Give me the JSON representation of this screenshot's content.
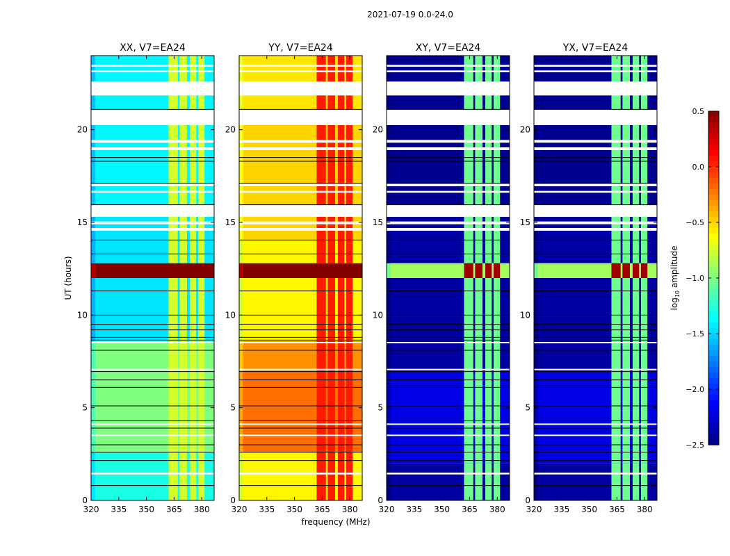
{
  "chart_data": {
    "type": "heatmap",
    "suptitle": "2021-07-19 0.0-24.0",
    "xlabel": "frequency (MHz)",
    "ylabel": "UT (hours)",
    "xlim": [
      320,
      386.7
    ],
    "ylim": [
      0,
      24
    ],
    "xticks": [
      320,
      335,
      350,
      365,
      380
    ],
    "yticks": [
      0,
      5,
      10,
      15,
      20
    ],
    "colorbar": {
      "label": "log10 amplitude",
      "label_main": "log",
      "label_sub": "10",
      "label_rest": " amplitude",
      "cmap": "jet",
      "vmin": -2.5,
      "vmax": 0.5,
      "ticks": [
        0.5,
        0.0,
        -0.5,
        -1.0,
        -1.5,
        -2.0,
        -2.5
      ],
      "tick_labels": [
        "0.5",
        "0.0",
        "−0.5",
        "−1.0",
        "−1.5",
        "−2.0",
        "−2.5"
      ]
    },
    "rfi_channels_mhz": [
      [
        362,
        367
      ],
      [
        368,
        372
      ],
      [
        373.5,
        377
      ],
      [
        378,
        381.5
      ]
    ],
    "flagged_hours": [
      [
        1.4,
        1.5
      ],
      [
        3.5,
        3.55
      ],
      [
        4.1,
        4.15
      ],
      [
        7.05,
        7.1
      ],
      [
        8.5,
        8.55
      ],
      [
        14.55,
        14.7
      ],
      [
        14.9,
        15.05
      ],
      [
        15.3,
        15.95
      ],
      [
        16.6,
        16.7
      ],
      [
        16.95,
        17.1
      ],
      [
        18.9,
        19.05
      ],
      [
        19.3,
        19.45
      ],
      [
        20.25,
        21.1
      ],
      [
        21.85,
        22.6
      ],
      [
        23.1,
        23.2
      ],
      [
        23.4,
        23.5
      ]
    ],
    "grid_lines_hours": [
      0.8,
      2.15,
      2.6,
      3.0,
      3.9,
      4.3,
      5.1,
      6.1,
      6.5,
      6.95,
      8.1,
      8.65,
      8.8,
      9.2,
      9.5,
      10.0,
      11.3,
      13.3,
      14.05,
      15.95,
      17.1,
      18.3,
      18.5,
      21.1
    ],
    "panels": [
      {
        "title": "XX, V7=EA24",
        "bands": [
          [
            0,
            2.6,
            -1.3
          ],
          [
            2.6,
            8.6,
            -1.0
          ],
          [
            8.6,
            12.0,
            -1.45
          ],
          [
            12.0,
            12.8,
            0.5
          ],
          [
            12.8,
            14.05,
            -1.45
          ],
          [
            14.05,
            15.3,
            -1.45
          ],
          [
            15.95,
            21.0,
            -1.4
          ],
          [
            21.0,
            24,
            -1.4
          ]
        ],
        "rfi_level": -0.75,
        "rfi_strip_level": 0.5
      },
      {
        "title": "YY, V7=EA24",
        "bands": [
          [
            0,
            2.6,
            -0.6
          ],
          [
            2.6,
            7.0,
            -0.2
          ],
          [
            7.0,
            8.6,
            -0.3
          ],
          [
            8.6,
            12.0,
            -0.6
          ],
          [
            12.0,
            12.8,
            0.5
          ],
          [
            12.8,
            14.05,
            -0.6
          ],
          [
            14.05,
            15.3,
            -0.5
          ],
          [
            15.95,
            21.0,
            -0.5
          ],
          [
            21.0,
            24,
            -0.55
          ]
        ],
        "rfi_level": 0.05,
        "rfi_strip_level": 0.5
      },
      {
        "title": "XY, V7=EA24",
        "bands": [
          [
            0,
            2.0,
            -2.4
          ],
          [
            2.0,
            7.0,
            -2.2
          ],
          [
            7.0,
            12.0,
            -2.4
          ],
          [
            12.0,
            12.8,
            -0.9
          ],
          [
            12.8,
            15.3,
            -2.4
          ],
          [
            15.95,
            24,
            -2.45
          ]
        ],
        "rfi_level": -1.05,
        "rfi_strip_level": 0.4
      },
      {
        "title": "YX, V7=EA24",
        "bands": [
          [
            0,
            2.0,
            -2.4
          ],
          [
            2.0,
            7.0,
            -2.2
          ],
          [
            7.0,
            12.0,
            -2.4
          ],
          [
            12.0,
            12.8,
            -0.9
          ],
          [
            12.8,
            15.3,
            -2.4
          ],
          [
            15.95,
            24,
            -2.45
          ]
        ],
        "rfi_level": -1.05,
        "rfi_strip_level": 0.4
      }
    ]
  }
}
